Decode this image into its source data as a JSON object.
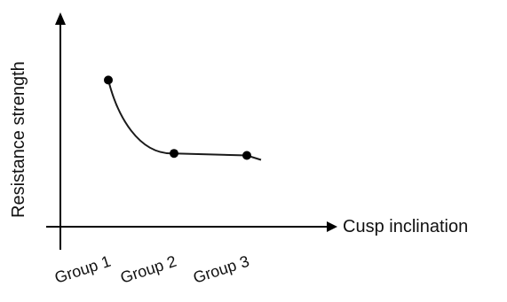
{
  "chart_data": {
    "type": "line",
    "title": "",
    "xlabel": "Cusp inclination",
    "ylabel": "Resistance strength",
    "categories": [
      "Group 1",
      "Group 2",
      "Group 3"
    ],
    "series": [
      {
        "values": [
          0.72,
          0.36,
          0.35
        ]
      }
    ],
    "ylim": [
      0,
      1
    ],
    "y_ticks_shown": false,
    "grid": false,
    "legend": "none",
    "x_tick_label_rotation": "slanted",
    "colors": {
      "axis": "#000000",
      "line": "#1a1a1a",
      "marker": "#000000"
    }
  }
}
